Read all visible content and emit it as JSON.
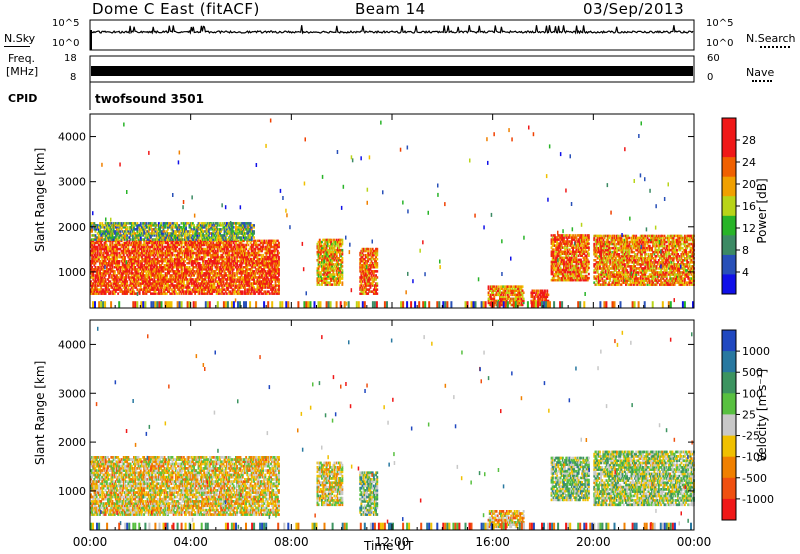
{
  "header": {
    "radar": "Dome C East (fitACF)",
    "beam": "Beam 14",
    "date": "03/Sep/2013"
  },
  "strip1": {
    "left_label": "N.Sky",
    "right_label": "N.Search",
    "left_ticks": [
      "10^5",
      "10^0"
    ],
    "right_ticks": [
      "10^5",
      "10^0"
    ]
  },
  "strip2": {
    "left_label_line1": "Freq.",
    "left_label_line2": "[MHz]",
    "right_label": "Nave",
    "left_ticks": [
      "18",
      "8"
    ],
    "right_ticks": [
      "60",
      "0"
    ]
  },
  "cpid": {
    "label": "CPID",
    "value": "twofsound 3501"
  },
  "panel_power": {
    "ylabel": "Slant Range [km]",
    "yticks": [
      "1000",
      "2000",
      "3000",
      "4000"
    ],
    "colorbar_label": "Power [dB]",
    "colorbar_ticks": [
      "4",
      "8",
      "12",
      "16",
      "20",
      "24",
      "28"
    ],
    "colorbar_colors": [
      "#1010e8",
      "#2850b8",
      "#3c8a64",
      "#28b428",
      "#b8d418",
      "#f0a000",
      "#f06000",
      "#f01818",
      "#f01818"
    ]
  },
  "panel_velocity": {
    "ylabel": "Slant Range [km]",
    "yticks": [
      "1000",
      "2000",
      "3000",
      "4000"
    ],
    "colorbar_label": "Velocity [m s⁻¹]",
    "colorbar_ticks": [
      "1000",
      "500",
      "100",
      "25",
      "-25",
      "-100",
      "-500",
      "-1000"
    ],
    "colorbar_colors": [
      "#2048c0",
      "#2878a0",
      "#3c9460",
      "#58c040",
      "#c8c8c8",
      "#f0c000",
      "#f08000",
      "#f05010",
      "#f01818"
    ]
  },
  "x_axis": {
    "label": "Time UT",
    "ticks": [
      "00:00",
      "04:00",
      "08:00",
      "12:00",
      "16:00",
      "20:00",
      "00:00"
    ]
  },
  "chart_data": [
    {
      "type": "heatmap",
      "title": "Dome C East (fitACF) Beam 14 03/Sep/2013",
      "xlabel": "Time UT",
      "ylabel": "Slant Range [km]",
      "colorbar": "Power [dB]",
      "xlim": [
        0,
        24
      ],
      "ylim": [
        200,
        4500
      ],
      "zlim": [
        0,
        30
      ],
      "regions": [
        {
          "t0": 0.0,
          "t1": 7.5,
          "r0": 500,
          "r1": 1700,
          "z": 26
        },
        {
          "t0": 0.0,
          "t1": 6.5,
          "r0": 1700,
          "r1": 2100,
          "z": 12
        },
        {
          "t0": 9.0,
          "t1": 10.0,
          "r0": 700,
          "r1": 1700,
          "z": 20
        },
        {
          "t0": 10.7,
          "t1": 11.4,
          "r0": 500,
          "r1": 1500,
          "z": 24
        },
        {
          "t0": 15.8,
          "t1": 17.2,
          "r0": 250,
          "r1": 700,
          "z": 22
        },
        {
          "t0": 17.5,
          "t1": 18.2,
          "r0": 250,
          "r1": 600,
          "z": 28
        },
        {
          "t0": 18.3,
          "t1": 19.8,
          "r0": 800,
          "r1": 1800,
          "z": 24
        },
        {
          "t0": 20.0,
          "t1": 24.0,
          "r0": 700,
          "r1": 1800,
          "z": 22
        }
      ]
    },
    {
      "type": "heatmap",
      "xlabel": "Time UT",
      "ylabel": "Slant Range [km]",
      "colorbar": "Velocity [m s⁻¹]",
      "xlim": [
        0,
        24
      ],
      "ylim": [
        200,
        4500
      ],
      "zlim": [
        -1000,
        1000
      ],
      "regions": [
        {
          "t0": 0.0,
          "t1": 7.5,
          "r0": 500,
          "r1": 1700,
          "z": -150
        },
        {
          "t0": 9.0,
          "t1": 10.0,
          "r0": 700,
          "r1": 1600,
          "z": -80
        },
        {
          "t0": 10.7,
          "t1": 11.4,
          "r0": 500,
          "r1": 1400,
          "z": 200
        },
        {
          "t0": 15.8,
          "t1": 17.2,
          "r0": 250,
          "r1": 600,
          "z": -200
        },
        {
          "t0": 18.3,
          "t1": 19.8,
          "r0": 800,
          "r1": 1700,
          "z": 150
        },
        {
          "t0": 20.0,
          "t1": 24.0,
          "r0": 700,
          "r1": 1800,
          "z": 100
        }
      ]
    }
  ]
}
